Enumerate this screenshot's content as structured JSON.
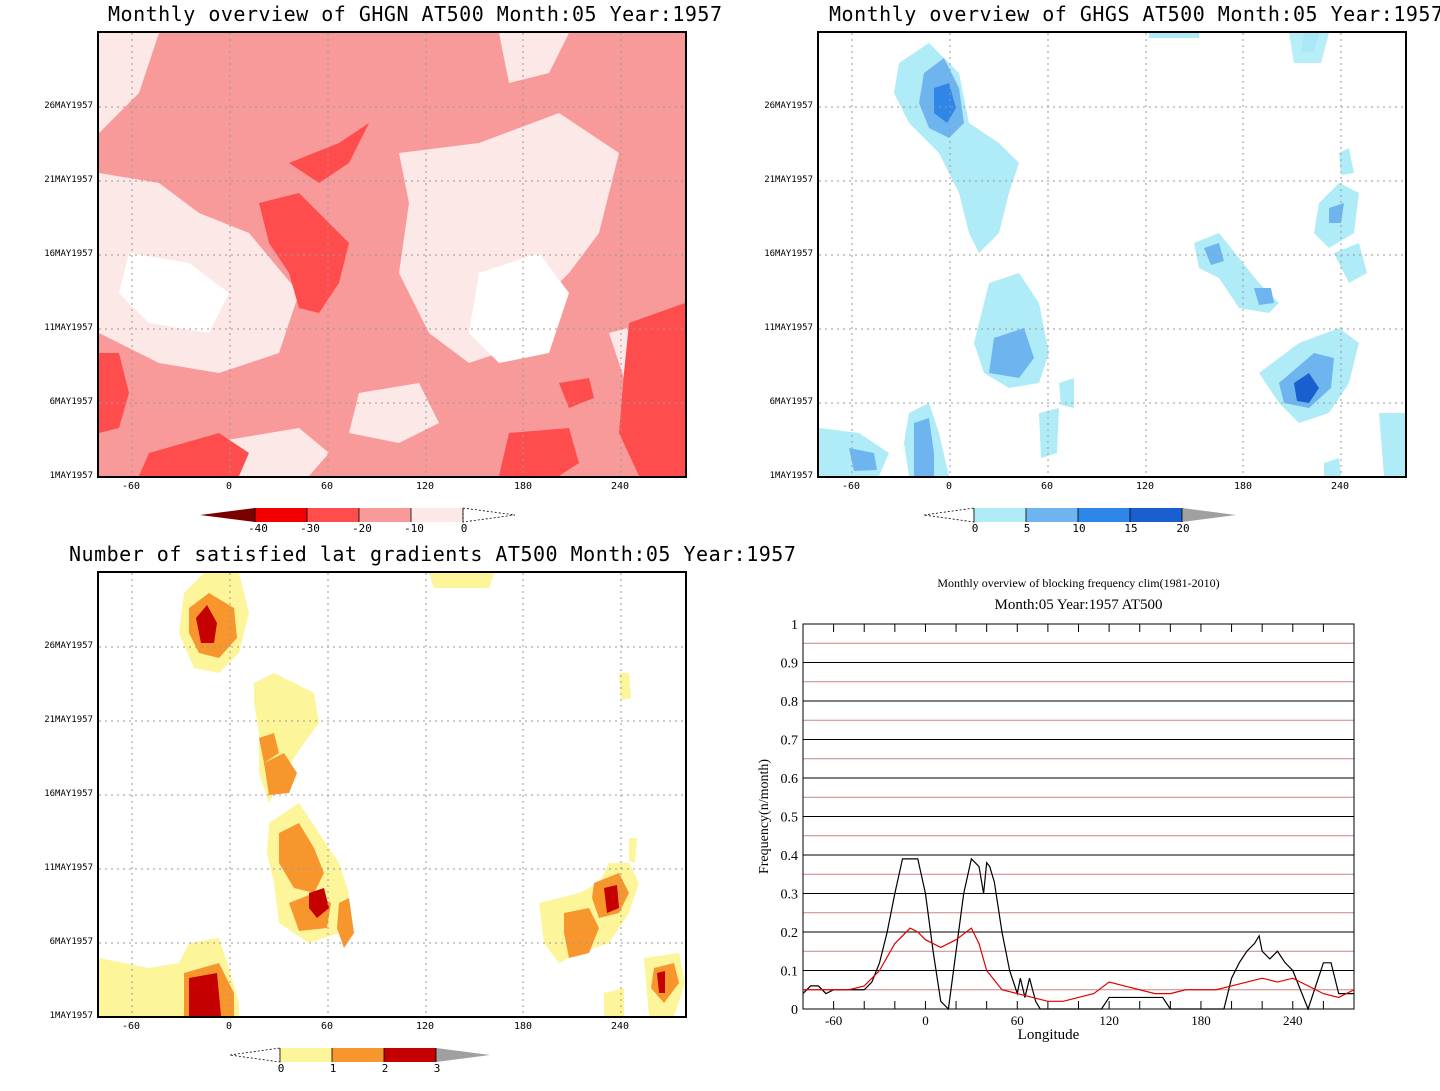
{
  "panels": {
    "ghgn": {
      "title": "Monthly overview of GHGN AT500 Month:05 Year:1957",
      "y_ticks": [
        "26MAY1957",
        "21MAY1957",
        "16MAY1957",
        "11MAY1957",
        "6MAY1957",
        "1MAY1957"
      ],
      "x_ticks": [
        "-60",
        "0",
        "60",
        "120",
        "180",
        "240"
      ],
      "colorbar": {
        "labels": [
          "-40",
          "-30",
          "-20",
          "-10",
          "0"
        ],
        "colors": [
          "#7a0000",
          "#f20000",
          "#ff4d4d",
          "#f99a9a",
          "#fde8e8"
        ]
      }
    },
    "ghgs": {
      "title": "Monthly overview of GHGS AT500 Month:05 Year:1957",
      "y_ticks": [
        "26MAY1957",
        "21MAY1957",
        "16MAY1957",
        "11MAY1957",
        "6MAY1957",
        "1MAY1957"
      ],
      "x_ticks": [
        "-60",
        "0",
        "60",
        "120",
        "180",
        "240"
      ],
      "colorbar": {
        "labels": [
          "0",
          "5",
          "10",
          "15",
          "20"
        ],
        "colors": [
          "#b0ecf7",
          "#6eb5f0",
          "#2d86e8",
          "#1a5fd0",
          "#a0a0a0"
        ]
      }
    },
    "gradients": {
      "title": "Number of satisfied lat gradients AT500 Month:05 Year:1957",
      "y_ticks": [
        "26MAY1957",
        "21MAY1957",
        "16MAY1957",
        "11MAY1957",
        "6MAY1957",
        "1MAY1957"
      ],
      "x_ticks": [
        "-60",
        "0",
        "60",
        "120",
        "180",
        "240"
      ],
      "colorbar": {
        "labels": [
          "0",
          "1",
          "2",
          "3"
        ],
        "colors": [
          "#fdf59a",
          "#f8962e",
          "#c40000",
          "#a0a0a0"
        ]
      }
    },
    "frequency": {
      "title": "Monthly overview of blocking frequency clim(1981-2010)",
      "subtitle": "Month:05 Year:1957  AT500"
    }
  },
  "chart_data": [
    {
      "type": "heatmap",
      "title": "Monthly overview of GHGN AT500 Month:05 Year:1957",
      "x_ticks": [
        -60,
        0,
        60,
        120,
        180,
        240
      ],
      "xlim": [
        -80,
        280
      ],
      "y_ticks": [
        "1MAY1957",
        "6MAY1957",
        "11MAY1957",
        "16MAY1957",
        "21MAY1957",
        "26MAY1957"
      ],
      "levels": [
        -40,
        -30,
        -20,
        -10,
        0
      ]
    },
    {
      "type": "heatmap",
      "title": "Monthly overview of GHGS AT500 Month:05 Year:1957",
      "x_ticks": [
        -60,
        0,
        60,
        120,
        180,
        240
      ],
      "xlim": [
        -80,
        280
      ],
      "y_ticks": [
        "1MAY1957",
        "6MAY1957",
        "11MAY1957",
        "16MAY1957",
        "21MAY1957",
        "26MAY1957"
      ],
      "levels": [
        0,
        5,
        10,
        15,
        20
      ]
    },
    {
      "type": "heatmap",
      "title": "Number of satisfied lat gradients AT500 Month:05 Year:1957",
      "x_ticks": [
        -60,
        0,
        60,
        120,
        180,
        240
      ],
      "xlim": [
        -80,
        280
      ],
      "y_ticks": [
        "1MAY1957",
        "6MAY1957",
        "11MAY1957",
        "16MAY1957",
        "21MAY1957",
        "26MAY1957"
      ],
      "levels": [
        0,
        1,
        2,
        3
      ]
    },
    {
      "type": "line",
      "title": "Monthly overview of blocking frequency clim(1981-2010)",
      "subtitle": "Month:05 Year:1957  AT500",
      "xlabel": "Longitude",
      "ylabel": "Frequency(n/month)",
      "xlim": [
        -80,
        280
      ],
      "ylim": [
        0,
        1
      ],
      "x_ticks": [
        -60,
        0,
        60,
        120,
        180,
        240
      ],
      "y_ticks": [
        0,
        0.1,
        0.2,
        0.3,
        0.4,
        0.5,
        0.6,
        0.7,
        0.8,
        0.9,
        1
      ],
      "series": [
        {
          "color": "#000000",
          "x": [
            -80,
            -75,
            -70,
            -65,
            -60,
            -55,
            -50,
            -45,
            -40,
            -35,
            -30,
            -25,
            -20,
            -15,
            -10,
            -5,
            0,
            5,
            10,
            15,
            20,
            25,
            30,
            35,
            38,
            40,
            42,
            45,
            50,
            55,
            60,
            62,
            65,
            68,
            70,
            72,
            75,
            80,
            85,
            90,
            95,
            100,
            105,
            110,
            115,
            120,
            125,
            130,
            135,
            140,
            145,
            150,
            155,
            160,
            165,
            170,
            175,
            180,
            185,
            190,
            195,
            200,
            205,
            210,
            215,
            218,
            220,
            225,
            230,
            235,
            240,
            245,
            250,
            255,
            260,
            265,
            270,
            275,
            280
          ],
          "y": [
            0.04,
            0.06,
            0.06,
            0.04,
            0.05,
            0.05,
            0.05,
            0.05,
            0.05,
            0.07,
            0.12,
            0.2,
            0.3,
            0.39,
            0.39,
            0.39,
            0.3,
            0.15,
            0.02,
            0,
            0.15,
            0.3,
            0.39,
            0.37,
            0.3,
            0.38,
            0.37,
            0.33,
            0.2,
            0.1,
            0.04,
            0.08,
            0.03,
            0.08,
            0.05,
            0.02,
            0,
            0,
            0,
            0,
            0,
            0,
            0,
            0,
            0,
            0.03,
            0.03,
            0.03,
            0.03,
            0.03,
            0.03,
            0.03,
            0.03,
            0,
            0,
            0,
            0,
            0,
            0,
            0,
            0,
            0.08,
            0.12,
            0.15,
            0.17,
            0.19,
            0.15,
            0.13,
            0.15,
            0.12,
            0.1,
            0.05,
            0,
            0.06,
            0.12,
            0.12,
            0.04,
            0.04,
            0.04
          ]
        },
        {
          "color": "#e00000",
          "x": [
            -80,
            -70,
            -60,
            -50,
            -40,
            -30,
            -20,
            -10,
            -5,
            0,
            10,
            20,
            30,
            35,
            40,
            50,
            60,
            70,
            80,
            90,
            100,
            110,
            120,
            130,
            140,
            150,
            160,
            170,
            180,
            190,
            200,
            210,
            220,
            230,
            240,
            250,
            260,
            270,
            280
          ],
          "y": [
            0.05,
            0.05,
            0.05,
            0.05,
            0.06,
            0.1,
            0.17,
            0.21,
            0.2,
            0.18,
            0.16,
            0.18,
            0.21,
            0.17,
            0.1,
            0.05,
            0.04,
            0.03,
            0.02,
            0.02,
            0.03,
            0.04,
            0.07,
            0.06,
            0.05,
            0.04,
            0.04,
            0.05,
            0.05,
            0.05,
            0.06,
            0.07,
            0.08,
            0.07,
            0.08,
            0.06,
            0.04,
            0.03,
            0.05
          ]
        }
      ]
    }
  ]
}
